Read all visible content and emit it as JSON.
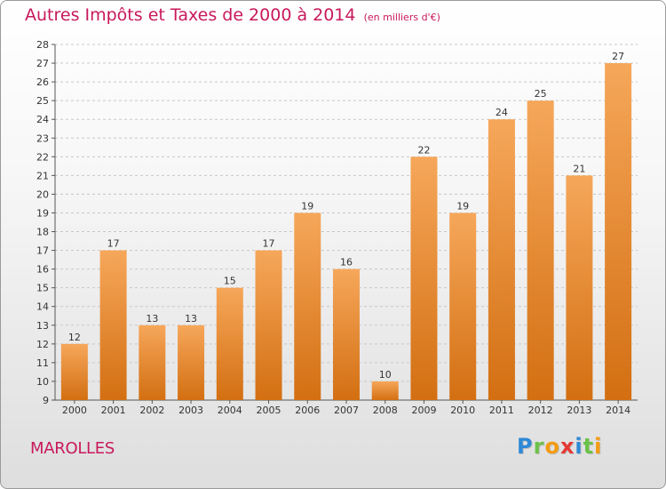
{
  "title": "Autres Impôts et Taxes de 2000 à 2014",
  "unit_note": "(en milliers d'€)",
  "location": "MAROLLES",
  "logo": {
    "letters": [
      {
        "char": "P",
        "color": "#2e89d6"
      },
      {
        "char": "r",
        "color": "#6cc24a"
      },
      {
        "char": "o",
        "color": "#f39c12"
      },
      {
        "char": "x",
        "color": "#e53935"
      },
      {
        "char": "i",
        "color": "#2e89d6"
      },
      {
        "char": "t",
        "color": "#6cc24a"
      },
      {
        "char": "i",
        "color": "#f39c12"
      }
    ]
  },
  "colors": {
    "title": "#c8195c",
    "bar_top": "#f6a75a",
    "bar_bottom": "#d36f12",
    "axis": "#555555",
    "grid": "#c7c7c7"
  },
  "chart_data": {
    "type": "bar",
    "title": "Autres Impôts et Taxes de 2000 à 2014",
    "unit": "(en milliers d'€)",
    "categories": [
      "2000",
      "2001",
      "2002",
      "2003",
      "2004",
      "2005",
      "2006",
      "2007",
      "2008",
      "2009",
      "2010",
      "2011",
      "2012",
      "2013",
      "2014"
    ],
    "values": [
      12,
      17,
      13,
      13,
      15,
      17,
      19,
      16,
      10,
      22,
      19,
      24,
      25,
      21,
      27
    ],
    "ylim": [
      9,
      28
    ],
    "yticks": [
      9,
      10,
      11,
      12,
      13,
      14,
      15,
      16,
      17,
      18,
      19,
      20,
      21,
      22,
      23,
      24,
      25,
      26,
      27,
      28
    ],
    "grid": true,
    "data_labels": true
  }
}
